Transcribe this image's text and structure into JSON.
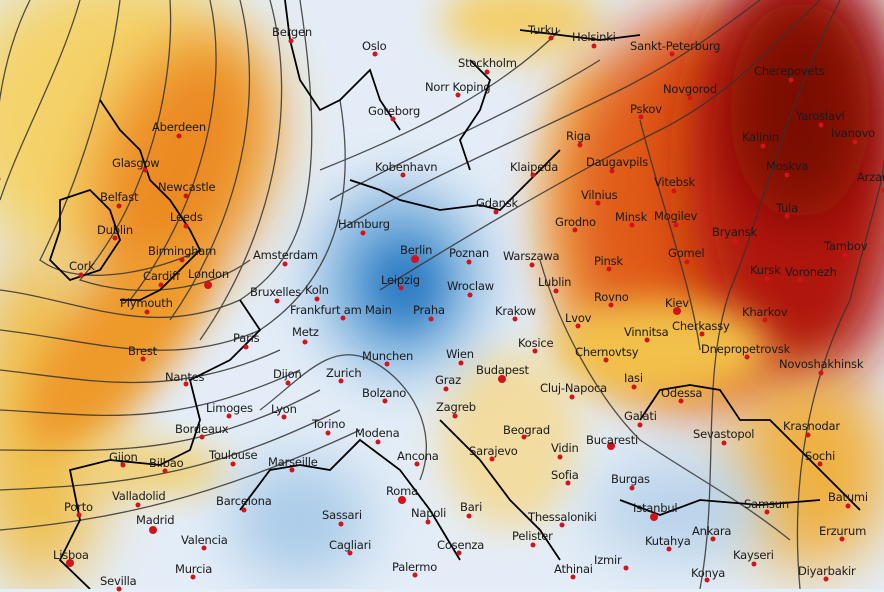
{
  "map": {
    "colors": {
      "cold": "#3a86c8",
      "cool": "#cfe0f0",
      "neutral": "#f5f0e0",
      "warm": "#f2c14a",
      "hot": "#e8661a",
      "very_hot": "#b01808",
      "extreme": "#6e0a04",
      "city_dot": "#d4121a",
      "contour": "#333333"
    },
    "cities": [
      "Bergen",
      "Oslo",
      "Norr Koping",
      "Stockholm",
      "Turku",
      "Helsinki",
      "Sankt-Peterburg",
      "Goteborg",
      "Aberdeen",
      "Glasgow",
      "Newcastle",
      "Belfast",
      "Leeds",
      "Dublin",
      "Birmingham",
      "Cork",
      "Cardiff",
      "London",
      "Amsterdam",
      "Kobenhavn",
      "Hamburg",
      "Berlin",
      "Leipzig",
      "Plymouth",
      "Bruxelles",
      "Koln",
      "Frankfurt am Main",
      "Praha",
      "Paris",
      "Metz",
      "Brest",
      "Munchen",
      "Nantes",
      "Dijon",
      "Zurich",
      "Bolzano",
      "Limoges",
      "Lyon",
      "Torino",
      "Modena",
      "Bordeaux",
      "Toulouse",
      "Gijon",
      "Bilbao",
      "Marseille",
      "Ancona",
      "Valladolid",
      "Porto",
      "Barcelona",
      "Madrid",
      "Roma",
      "Sassari",
      "Napoli",
      "Valencia",
      "Cagliari",
      "Lisboa",
      "Murcia",
      "Sevilla",
      "Palermo",
      "Cosenza",
      "Bari",
      "Poznan",
      "Warszawa",
      "Gdansk",
      "Klaipeda",
      "Riga",
      "Daugavpils",
      "Vilnius",
      "Grodno",
      "Minsk",
      "Mogilev",
      "Vitebsk",
      "Pskov",
      "Novgorod",
      "Cherepovets",
      "Yaroslavl",
      "Ivanovo",
      "Kalinin",
      "Moskva",
      "Arzamas",
      "Tula",
      "Bryansk",
      "Gomel",
      "Pinsk",
      "Tambov",
      "Kursk",
      "Voronezh",
      "Lublin",
      "Wroclaw",
      "Krakow",
      "Lvov",
      "Rovno",
      "Kiev",
      "Kharkov",
      "Cherkassy",
      "Vinnitsa",
      "Dnepropetrovsk",
      "Novoshakhinsk",
      "Kosice",
      "Wien",
      "Chernovtsy",
      "Budapest",
      "Graz",
      "Iasi",
      "Cluj-Napoca",
      "Odessa",
      "Zagreb",
      "Galati",
      "Beograd",
      "Sevastopol",
      "Krasnodar",
      "Bucaresti",
      "Sarajevo",
      "Vidin",
      "Sochi",
      "Sofia",
      "Burgas",
      "Samsun",
      "Batumi",
      "Istanbul",
      "Thessaloniki",
      "Pelister",
      "Ankara",
      "Erzurum",
      "Kutahya",
      "Kayseri",
      "Izmir",
      "Athinai",
      "Konya",
      "Diyarbakir"
    ]
  }
}
